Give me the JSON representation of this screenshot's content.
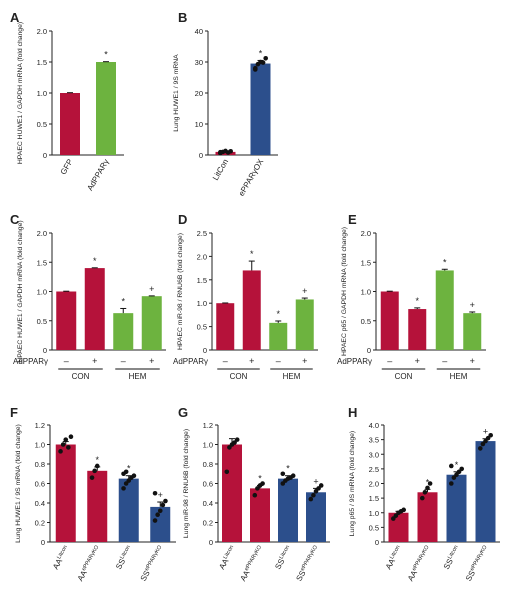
{
  "colors": {
    "red": "#b5123a",
    "green": "#6db33f",
    "blue": "#2c4f8c",
    "axis": "#222222"
  },
  "chart_data": [
    {
      "panel": "A",
      "type": "bar",
      "ylabel": "HPAEC HUWE1 / GAPDH mRNA (fold change)",
      "ylim": [
        0,
        2.0
      ],
      "ticks": [
        0,
        0.5,
        1.0,
        1.5,
        2.0
      ],
      "categories": [
        "GFP",
        "AdPPARγ"
      ],
      "values": [
        1.0,
        1.5
      ],
      "errors": [
        0.005,
        0.005
      ],
      "colors": [
        "red",
        "green"
      ],
      "marks": [
        "",
        "*"
      ],
      "points": [
        [],
        []
      ]
    },
    {
      "panel": "B",
      "type": "bar",
      "ylabel": "Lung HUWE1 / 9S mRNA",
      "ylim": [
        0,
        40
      ],
      "ticks": [
        0,
        10,
        20,
        30,
        40
      ],
      "categories": [
        "LitCon",
        "ePPARγOX"
      ],
      "values": [
        1.0,
        29.5
      ],
      "errors": [
        0.3,
        1.0
      ],
      "colors": [
        "red",
        "blue"
      ],
      "marks": [
        "",
        "*"
      ],
      "points": [
        [
          0.6,
          1.0,
          1.3,
          0.8,
          1.2,
          0.9
        ],
        [
          28.0,
          29.3,
          30.0,
          29.8,
          31.2,
          27.6
        ]
      ]
    },
    {
      "panel": "C",
      "type": "bar",
      "ylabel": "HPAEC HUWE1 / GAPDH mRNA (fold change)",
      "ylim": [
        0,
        2.0
      ],
      "ticks": [
        0,
        0.5,
        1.0,
        1.5,
        2.0
      ],
      "values": [
        1.0,
        1.4,
        0.63,
        0.92
      ],
      "errors": [
        0.005,
        0.005,
        0.08,
        0.005
      ],
      "colors": [
        "red",
        "red",
        "green",
        "green"
      ],
      "marks": [
        "",
        "*",
        "*",
        "+"
      ],
      "treatment_label": "AdPPARγ",
      "treatment": [
        "–",
        "+",
        "–",
        "+"
      ],
      "groups": [
        "CON",
        "HEM"
      ],
      "points": [
        [],
        [],
        [],
        []
      ]
    },
    {
      "panel": "D",
      "type": "bar",
      "ylabel": "HPAEC miR-98 / RNU6B (fold change)",
      "ylim": [
        0,
        2.5
      ],
      "ticks": [
        0,
        0.5,
        1.0,
        1.5,
        2.0,
        2.5
      ],
      "values": [
        1.0,
        1.7,
        0.58,
        1.08
      ],
      "errors": [
        0.005,
        0.2,
        0.04,
        0.03
      ],
      "colors": [
        "red",
        "red",
        "green",
        "green"
      ],
      "marks": [
        "",
        "*",
        "*",
        "+"
      ],
      "treatment_label": "AdPPARγ",
      "treatment": [
        "–",
        "+",
        "–",
        "+"
      ],
      "groups": [
        "CON",
        "HEM"
      ],
      "points": [
        [],
        [],
        [],
        []
      ]
    },
    {
      "panel": "E",
      "type": "bar",
      "ylabel": "HPAEC p65 / GAPDH mRNA (fold change)",
      "ylim": [
        0,
        2.0
      ],
      "ticks": [
        0,
        0.5,
        1.0,
        1.5,
        2.0
      ],
      "values": [
        1.0,
        0.7,
        1.36,
        0.63
      ],
      "errors": [
        0.005,
        0.02,
        0.02,
        0.02
      ],
      "colors": [
        "red",
        "red",
        "green",
        "green"
      ],
      "marks": [
        "",
        "*",
        "*",
        "+"
      ],
      "treatment_label": "AdPPARγ",
      "treatment": [
        "–",
        "+",
        "–",
        "+"
      ],
      "groups": [
        "CON",
        "HEM"
      ],
      "points": [
        [],
        [],
        [],
        []
      ]
    },
    {
      "panel": "F",
      "type": "bar",
      "ylabel": "Lung HUWE1 / 9S mRNA (fold change)",
      "ylim": [
        0,
        1.2
      ],
      "ticks": [
        0,
        0.2,
        0.4,
        0.6,
        0.8,
        1.0,
        1.2
      ],
      "values": [
        1.0,
        0.73,
        0.65,
        0.36
      ],
      "errors": [
        0.03,
        0.04,
        0.03,
        0.05
      ],
      "colors": [
        "red",
        "red",
        "blue",
        "blue"
      ],
      "marks": [
        "",
        "*",
        "*",
        "+"
      ],
      "labels": [
        [
          "AA",
          "Litcon"
        ],
        [
          "AA",
          "ePPARγKO"
        ],
        [
          "SS",
          "Litcon"
        ],
        [
          "SS",
          "ePPARγKO"
        ]
      ],
      "points": [
        [
          0.93,
          1.0,
          1.05,
          0.97,
          1.08
        ],
        [
          0.66,
          0.73,
          0.78
        ],
        [
          0.55,
          0.6,
          0.63,
          0.66,
          0.68,
          0.7,
          0.72
        ],
        [
          0.22,
          0.28,
          0.32,
          0.38,
          0.42,
          0.5
        ]
      ]
    },
    {
      "panel": "G",
      "type": "bar",
      "ylabel": "Lung miR-98 / RNU6B (fold change)",
      "ylim": [
        0,
        1.2
      ],
      "ticks": [
        0,
        0.2,
        0.4,
        0.6,
        0.8,
        1.0,
        1.2
      ],
      "values": [
        1.0,
        0.55,
        0.65,
        0.51
      ],
      "errors": [
        0.06,
        0.03,
        0.03,
        0.04
      ],
      "colors": [
        "red",
        "red",
        "blue",
        "blue"
      ],
      "marks": [
        "",
        "*",
        "*",
        "+"
      ],
      "labels": [
        [
          "AA",
          "Litcon"
        ],
        [
          "AA",
          "ePPARγKO"
        ],
        [
          "SS",
          "Litcon"
        ],
        [
          "SS",
          "ePPARγKO"
        ]
      ],
      "points": [
        [
          0.72,
          0.97,
          1.0,
          1.02,
          1.05
        ],
        [
          0.48,
          0.55,
          0.58,
          0.6
        ],
        [
          0.6,
          0.63,
          0.65,
          0.66,
          0.68,
          0.7
        ],
        [
          0.44,
          0.48,
          0.52,
          0.55,
          0.58
        ]
      ]
    },
    {
      "panel": "H",
      "type": "bar",
      "ylabel": "Lung p65 / 9S mRNA (fold change)",
      "ylim": [
        0,
        4.0
      ],
      "ticks": [
        0,
        0.5,
        1.0,
        1.5,
        2.0,
        2.5,
        3.0,
        3.5,
        4.0
      ],
      "values": [
        1.0,
        1.7,
        2.3,
        3.45
      ],
      "errors": [
        0.05,
        0.1,
        0.1,
        0.08
      ],
      "colors": [
        "red",
        "red",
        "blue",
        "blue"
      ],
      "marks": [
        "",
        "*",
        "*",
        "+"
      ],
      "labels": [
        [
          "AA",
          "Litcon"
        ],
        [
          "AA",
          "ePPARγKO"
        ],
        [
          "SS",
          "Litcon"
        ],
        [
          "SS",
          "ePPARγKO"
        ]
      ],
      "points": [
        [
          0.8,
          0.9,
          1.0,
          1.05,
          1.1
        ],
        [
          1.5,
          1.7,
          1.85,
          2.0
        ],
        [
          2.0,
          2.2,
          2.3,
          2.4,
          2.5,
          2.6
        ],
        [
          3.2,
          3.35,
          3.45,
          3.55,
          3.65
        ]
      ]
    }
  ]
}
